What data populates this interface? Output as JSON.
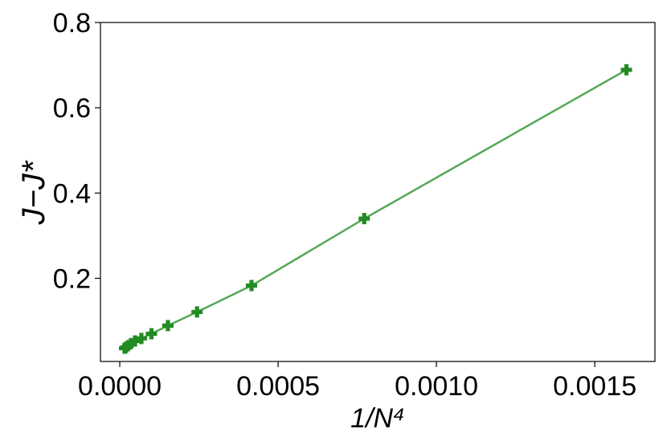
{
  "chart_data": {
    "type": "line",
    "xlabel": "1/N⁴",
    "ylabel": "J−J*",
    "x": [
      0.0016,
      0.000772,
      0.000416,
      0.000244,
      0.000152,
      0.0001,
      6.83e-05,
      4.82e-05,
      3.5e-05,
      2.6e-05,
      1.98e-05,
      1.53e-05
    ],
    "series": [
      {
        "color": "#228b22",
        "line_color": "#55a855",
        "values": [
          0.689,
          0.34,
          0.183,
          0.121,
          0.089,
          0.07,
          0.059,
          0.053,
          0.047,
          0.042,
          0.038,
          0.036
        ]
      }
    ],
    "xlim": [
      -6.1e-05,
      0.00169
    ],
    "ylim": [
      0.005,
      0.8
    ],
    "xticks": [
      {
        "value": 0,
        "label": "0.0000"
      },
      {
        "value": 0.0005,
        "label": "0.0005"
      },
      {
        "value": 0.001,
        "label": "0.0010"
      },
      {
        "value": 0.0015,
        "label": "0.0015"
      }
    ],
    "yticks": [
      0.2,
      0.4,
      0.6,
      0.8
    ]
  }
}
